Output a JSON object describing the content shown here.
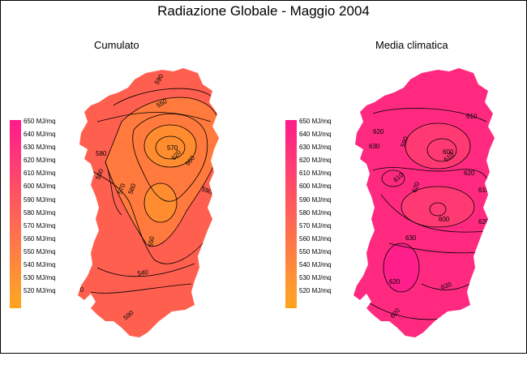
{
  "title": "Radiazione Globale - Maggio 2004",
  "left_panel": {
    "subtitle": "Cumulato",
    "contour_labels": [
      "590",
      "550",
      "580",
      "590",
      "570",
      "560",
      "570",
      "620",
      "560",
      "590",
      "550",
      "540",
      "570",
      "590"
    ]
  },
  "right_panel": {
    "subtitle": "Media climatica",
    "contour_labels": [
      "610",
      "620",
      "630",
      "590",
      "610",
      "600",
      "610",
      "620",
      "610",
      "620",
      "620",
      "600",
      "630",
      "630",
      "620",
      "630",
      "620"
    ]
  },
  "legend": {
    "unit": "MJ/mq",
    "entries": [
      {
        "value": "650",
        "color": "#ff1a8c"
      },
      {
        "value": "640",
        "color": "#ff2584"
      },
      {
        "value": "630",
        "color": "#ff307c"
      },
      {
        "value": "620",
        "color": "#ff3b74"
      },
      {
        "value": "610",
        "color": "#ff466c"
      },
      {
        "value": "600",
        "color": "#ff5164"
      },
      {
        "value": "590",
        "color": "#ff5c5c"
      },
      {
        "value": "580",
        "color": "#ff6754"
      },
      {
        "value": "570",
        "color": "#ff724c"
      },
      {
        "value": "560",
        "color": "#ff7d44"
      },
      {
        "value": "550",
        "color": "#ff883c"
      },
      {
        "value": "540",
        "color": "#ff9334"
      },
      {
        "value": "530",
        "color": "#ff9e2c"
      },
      {
        "value": "520",
        "color": "#ffa31a"
      }
    ]
  },
  "map_colors": {
    "cumulato_main": "#ff5f4f",
    "cumulato_high": "#ff7a3c",
    "cumulato_peak": "#ff8d30",
    "climatica_main": "#ff2a80",
    "climatica_low": "#ff3a72",
    "climatica_high": "#ff1f8a"
  }
}
